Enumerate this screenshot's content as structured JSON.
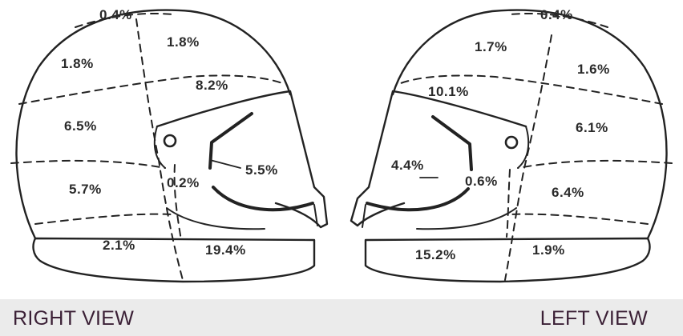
{
  "right_view": {
    "caption": "RIGHT VIEW",
    "regions": [
      {
        "id": "crown-front",
        "value": "0.4%"
      },
      {
        "id": "upper-rear",
        "value": "1.8%"
      },
      {
        "id": "upper-front",
        "value": "1.8%"
      },
      {
        "id": "upper-mid-front",
        "value": "8.2%"
      },
      {
        "id": "mid-rear",
        "value": "6.5%"
      },
      {
        "id": "lower-mid-rear",
        "value": "5.7%"
      },
      {
        "id": "chin-upper",
        "value": "0.2%"
      },
      {
        "id": "face",
        "value": "5.5%"
      },
      {
        "id": "lower-rear",
        "value": "2.1%"
      },
      {
        "id": "lower-front",
        "value": "19.4%"
      }
    ]
  },
  "left_view": {
    "caption": "LEFT VIEW",
    "regions": [
      {
        "id": "crown-front",
        "value": "0.4%"
      },
      {
        "id": "upper-front",
        "value": "1.7%"
      },
      {
        "id": "upper-rear",
        "value": "1.6%"
      },
      {
        "id": "upper-mid-front",
        "value": "10.1%"
      },
      {
        "id": "mid-rear",
        "value": "6.1%"
      },
      {
        "id": "face",
        "value": "4.4%"
      },
      {
        "id": "chin-upper",
        "value": "0.6%"
      },
      {
        "id": "lower-mid-rear",
        "value": "6.4%"
      },
      {
        "id": "lower-front",
        "value": "15.2%"
      },
      {
        "id": "lower-rear",
        "value": "1.9%"
      }
    ]
  }
}
